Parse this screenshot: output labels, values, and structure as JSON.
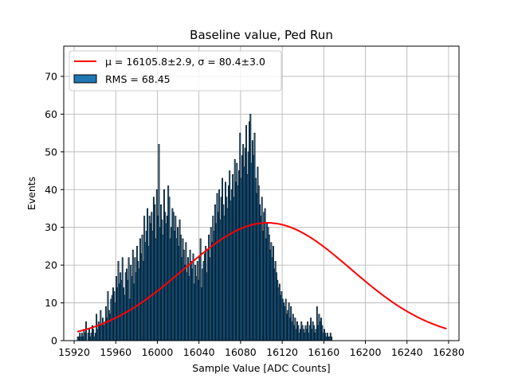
{
  "chart_data": {
    "type": "bar",
    "title": "Baseline value, Ped Run",
    "xlabel": "Sample Value [ADC Counts]",
    "ylabel": "Events",
    "xlim": [
      15910,
      16290
    ],
    "ylim": [
      0,
      78
    ],
    "xticks": [
      15920,
      15960,
      16000,
      16040,
      16080,
      16120,
      16160,
      16200,
      16240,
      16280
    ],
    "yticks": [
      0,
      10,
      20,
      30,
      40,
      50,
      60,
      70
    ],
    "grid": true,
    "legend_position": "upper-left",
    "colors": {
      "bar_fill": "#1f77b4",
      "bar_edge": "#000000",
      "fit_line": "#ff0000",
      "grid": "#b0b0b0"
    },
    "histogram": {
      "name": "RMS = 68.45",
      "bin_start": 15923,
      "bin_width": 1,
      "counts": [
        1,
        1,
        2,
        1,
        2,
        1,
        3,
        2,
        5,
        0,
        2,
        3,
        1,
        2,
        4,
        3,
        1,
        2,
        7,
        3,
        5,
        4,
        8,
        4,
        6,
        4,
        5,
        9,
        6,
        13,
        8,
        7,
        11,
        12,
        14,
        13,
        10,
        17,
        14,
        21,
        15,
        18,
        16,
        22,
        14,
        12,
        18,
        19,
        16,
        22,
        11,
        20,
        17,
        24,
        15,
        22,
        18,
        25,
        21,
        19,
        27,
        23,
        28,
        21,
        33,
        26,
        29,
        35,
        25,
        33,
        31,
        34,
        29,
        38,
        36,
        27,
        40,
        33,
        52,
        30,
        36,
        32,
        28,
        40,
        34,
        31,
        33,
        41,
        38,
        27,
        30,
        35,
        34,
        29,
        33,
        27,
        30,
        25,
        32,
        28,
        22,
        27,
        24,
        20,
        26,
        18,
        22,
        17,
        24,
        21,
        19,
        23,
        15,
        20,
        17,
        21,
        16,
        22,
        27,
        14,
        19,
        21,
        23,
        25,
        18,
        24,
        28,
        22,
        30,
        26,
        33,
        29,
        36,
        31,
        39,
        34,
        40,
        32,
        38,
        43,
        36,
        33,
        42,
        38,
        35,
        41,
        45,
        37,
        40,
        44,
        38,
        48,
        42,
        47,
        41,
        45,
        55,
        43,
        49,
        52,
        46,
        51,
        57,
        44,
        50,
        58,
        60,
        47,
        53,
        49,
        55,
        43,
        39,
        46,
        41,
        36,
        33,
        38,
        29,
        34,
        35,
        27,
        31,
        30,
        28,
        24,
        26,
        22,
        25,
        19,
        21,
        18,
        16,
        14,
        15,
        12,
        13,
        11,
        10,
        9,
        11,
        7,
        8,
        10,
        6,
        9,
        5,
        7,
        4,
        6,
        3,
        5,
        4,
        2,
        3,
        5,
        4,
        3,
        2,
        4,
        3,
        5,
        2,
        4,
        6,
        3,
        5,
        4,
        2,
        3,
        9,
        4,
        7,
        5,
        6,
        4,
        2,
        3,
        2,
        1,
        2,
        1,
        1,
        2,
        1
      ]
    },
    "fit": {
      "name": "μ = 16105.8±2.9, σ = 80.4±3.0",
      "mu": 16105.8,
      "sigma": 80.4,
      "amplitude": 31.2,
      "x_range": [
        15923,
        16278
      ]
    }
  }
}
